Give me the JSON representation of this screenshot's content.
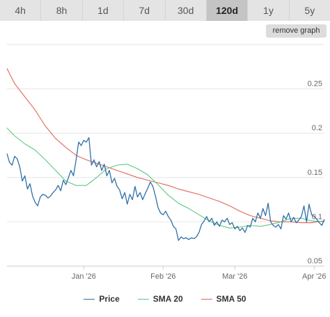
{
  "tabs": [
    {
      "label": "4h",
      "active": false
    },
    {
      "label": "8h",
      "active": false
    },
    {
      "label": "1d",
      "active": false
    },
    {
      "label": "7d",
      "active": false
    },
    {
      "label": "30d",
      "active": false
    },
    {
      "label": "120d",
      "active": true
    },
    {
      "label": "1y",
      "active": false
    },
    {
      "label": "5y",
      "active": false
    }
  ],
  "remove_graph_label": "remove graph",
  "chart_data": {
    "type": "line",
    "title": "",
    "xlabel": "",
    "ylabel": "",
    "ylim": [
      0.05,
      0.3
    ],
    "yticks": [
      0.05,
      0.1,
      0.15,
      0.2,
      0.25
    ],
    "ytick_labels": [
      "0.05",
      "0.1",
      "0.15",
      "0.2",
      "0.25"
    ],
    "xlim": [
      "2025-12-02",
      "2026-04-05"
    ],
    "xticks": [
      "2026-01-01",
      "2026-02-01",
      "2026-03-01",
      "2026-04-01"
    ],
    "xtick_labels": [
      "Jan '26",
      "Feb '26",
      "Mar '26",
      "Apr '26"
    ],
    "grid": true,
    "legend_position": "bottom",
    "series": [
      {
        "name": "Price",
        "color": "#2f6fa7",
        "x": [
          "2025-12-02",
          "2025-12-03",
          "2025-12-04",
          "2025-12-05",
          "2025-12-06",
          "2025-12-07",
          "2025-12-08",
          "2025-12-09",
          "2025-12-10",
          "2025-12-11",
          "2025-12-12",
          "2025-12-13",
          "2025-12-14",
          "2025-12-15",
          "2025-12-16",
          "2025-12-17",
          "2025-12-18",
          "2025-12-19",
          "2025-12-20",
          "2025-12-21",
          "2025-12-22",
          "2025-12-23",
          "2025-12-24",
          "2025-12-25",
          "2025-12-26",
          "2025-12-27",
          "2025-12-28",
          "2025-12-29",
          "2025-12-30",
          "2025-12-31",
          "2026-01-01",
          "2026-01-02",
          "2026-01-03",
          "2026-01-04",
          "2026-01-05",
          "2026-01-06",
          "2026-01-07",
          "2026-01-08",
          "2026-01-09",
          "2026-01-10",
          "2026-01-11",
          "2026-01-12",
          "2026-01-13",
          "2026-01-14",
          "2026-01-15",
          "2026-01-16",
          "2026-01-17",
          "2026-01-18",
          "2026-01-19",
          "2026-01-20",
          "2026-01-21",
          "2026-01-22",
          "2026-01-23",
          "2026-01-24",
          "2026-01-25",
          "2026-01-26",
          "2026-01-27",
          "2026-01-28",
          "2026-01-29",
          "2026-01-30",
          "2026-01-31",
          "2026-02-01",
          "2026-02-02",
          "2026-02-03",
          "2026-02-04",
          "2026-02-05",
          "2026-02-06",
          "2026-02-07",
          "2026-02-08",
          "2026-02-09",
          "2026-02-10",
          "2026-02-11",
          "2026-02-12",
          "2026-02-13",
          "2026-02-14",
          "2026-02-15",
          "2026-02-16",
          "2026-02-17",
          "2026-02-18",
          "2026-02-19",
          "2026-02-20",
          "2026-02-21",
          "2026-02-22",
          "2026-02-23",
          "2026-02-24",
          "2026-02-25",
          "2026-02-26",
          "2026-02-27",
          "2026-02-28",
          "2026-03-01",
          "2026-03-02",
          "2026-03-03",
          "2026-03-04",
          "2026-03-05",
          "2026-03-06",
          "2026-03-07",
          "2026-03-08",
          "2026-03-09",
          "2026-03-10",
          "2026-03-11",
          "2026-03-12",
          "2026-03-13",
          "2026-03-14",
          "2026-03-15",
          "2026-03-16",
          "2026-03-17",
          "2026-03-18",
          "2026-03-19",
          "2026-03-20",
          "2026-03-21",
          "2026-03-22",
          "2026-03-23",
          "2026-03-24",
          "2026-03-25",
          "2026-03-26",
          "2026-03-27",
          "2026-03-28",
          "2026-03-29",
          "2026-03-30",
          "2026-03-31",
          "2026-04-01",
          "2026-04-02",
          "2026-04-03",
          "2026-04-04",
          "2026-04-05"
        ],
        "y": [
          0.177,
          0.167,
          0.164,
          0.174,
          0.171,
          0.162,
          0.146,
          0.152,
          0.137,
          0.143,
          0.129,
          0.122,
          0.118,
          0.128,
          0.131,
          0.13,
          0.127,
          0.129,
          0.133,
          0.136,
          0.141,
          0.135,
          0.147,
          0.142,
          0.15,
          0.158,
          0.152,
          0.17,
          0.19,
          0.186,
          0.192,
          0.19,
          0.195,
          0.164,
          0.17,
          0.162,
          0.168,
          0.158,
          0.165,
          0.152,
          0.158,
          0.144,
          0.149,
          0.14,
          0.136,
          0.126,
          0.133,
          0.12,
          0.131,
          0.125,
          0.14,
          0.128,
          0.133,
          0.125,
          0.132,
          0.138,
          0.145,
          0.14,
          0.129,
          0.116,
          0.11,
          0.108,
          0.112,
          0.106,
          0.102,
          0.095,
          0.092,
          0.079,
          0.083,
          0.081,
          0.082,
          0.08,
          0.082,
          0.081,
          0.083,
          0.088,
          0.097,
          0.101,
          0.106,
          0.1,
          0.104,
          0.096,
          0.1,
          0.095,
          0.102,
          0.1,
          0.104,
          0.097,
          0.099,
          0.092,
          0.095,
          0.09,
          0.093,
          0.088,
          0.096,
          0.094,
          0.104,
          0.1,
          0.11,
          0.104,
          0.115,
          0.107,
          0.121,
          0.1,
          0.096,
          0.094,
          0.097,
          0.092,
          0.107,
          0.103,
          0.11,
          0.1,
          0.105,
          0.099,
          0.102,
          0.106,
          0.118,
          0.1,
          0.12,
          0.108,
          0.106,
          0.103,
          0.099,
          0.096,
          0.103
        ]
      },
      {
        "name": "SMA 20",
        "color": "#5bc77f",
        "x": [
          "2025-12-02",
          "2025-12-05",
          "2025-12-09",
          "2025-12-13",
          "2025-12-17",
          "2025-12-21",
          "2025-12-25",
          "2025-12-29",
          "2026-01-02",
          "2026-01-06",
          "2026-01-10",
          "2026-01-14",
          "2026-01-18",
          "2026-01-22",
          "2026-01-26",
          "2026-01-30",
          "2026-02-03",
          "2026-02-07",
          "2026-02-11",
          "2026-02-15",
          "2026-02-19",
          "2026-02-23",
          "2026-02-27",
          "2026-03-03",
          "2026-03-07",
          "2026-03-11",
          "2026-03-15",
          "2026-03-19",
          "2026-03-23",
          "2026-03-27",
          "2026-03-31",
          "2026-04-05"
        ],
        "y": [
          0.206,
          0.197,
          0.188,
          0.181,
          0.17,
          0.158,
          0.146,
          0.141,
          0.141,
          0.15,
          0.16,
          0.164,
          0.165,
          0.16,
          0.153,
          0.142,
          0.13,
          0.121,
          0.115,
          0.108,
          0.101,
          0.096,
          0.093,
          0.094,
          0.096,
          0.095,
          0.097,
          0.1,
          0.104,
          0.104,
          0.101,
          0.1
        ]
      },
      {
        "name": "SMA 50",
        "color": "#e0675a",
        "x": [
          "2025-12-02",
          "2025-12-05",
          "2025-12-09",
          "2025-12-13",
          "2025-12-17",
          "2025-12-21",
          "2025-12-25",
          "2025-12-29",
          "2026-01-02",
          "2026-01-06",
          "2026-01-10",
          "2026-01-14",
          "2026-01-18",
          "2026-01-22",
          "2026-01-26",
          "2026-01-30",
          "2026-02-03",
          "2026-02-07",
          "2026-02-11",
          "2026-02-15",
          "2026-02-19",
          "2026-02-23",
          "2026-02-27",
          "2026-03-03",
          "2026-03-07",
          "2026-03-11",
          "2026-03-15",
          "2026-03-19",
          "2026-03-23",
          "2026-03-27",
          "2026-03-31",
          "2026-04-05"
        ],
        "y": [
          0.273,
          0.256,
          0.241,
          0.226,
          0.208,
          0.194,
          0.184,
          0.175,
          0.17,
          0.166,
          0.162,
          0.158,
          0.154,
          0.15,
          0.147,
          0.144,
          0.141,
          0.137,
          0.134,
          0.131,
          0.127,
          0.123,
          0.118,
          0.112,
          0.107,
          0.104,
          0.101,
          0.1,
          0.1,
          0.099,
          0.099,
          0.101
        ]
      }
    ]
  }
}
